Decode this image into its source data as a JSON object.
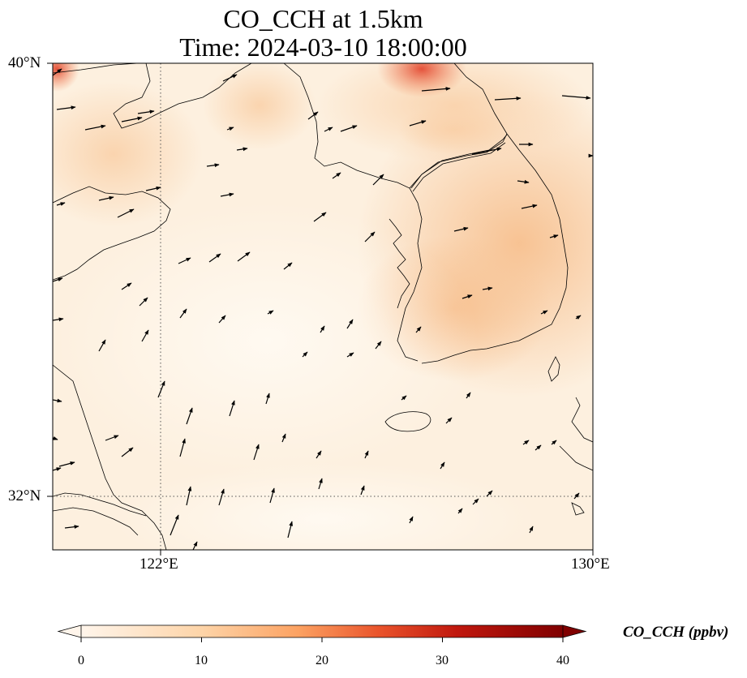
{
  "title": "CO_CCH at 1.5km",
  "subtitle": "Time: 2024-03-10 18:00:00",
  "map": {
    "extent": {
      "lon": [
        120,
        130
      ],
      "lat": [
        31,
        40
      ]
    },
    "lat_ticks": [
      {
        "value": 40,
        "label": "40°N"
      },
      {
        "value": 32,
        "label": "32°N"
      }
    ],
    "lon_ticks": [
      {
        "value": 122,
        "label": "122°E"
      },
      {
        "value": 130,
        "label": "130°E"
      }
    ],
    "gridlines": "dotted"
  },
  "colorbar": {
    "label": "CO_CCH (ppbv)",
    "ticks": [
      "0",
      "10",
      "20",
      "30",
      "40"
    ],
    "min": 0,
    "max": 40,
    "colormap": [
      "#fff5eb",
      "#fee6ce",
      "#fdd0a2",
      "#fdae6b",
      "#fd8d3c",
      "#f16913",
      "#d94801",
      "#a63603",
      "#7f2704"
    ],
    "extend": "both"
  },
  "field_colors": {
    "base": "#fdf0df",
    "high": "#f9c89c",
    "peak": "#e34a33"
  }
}
